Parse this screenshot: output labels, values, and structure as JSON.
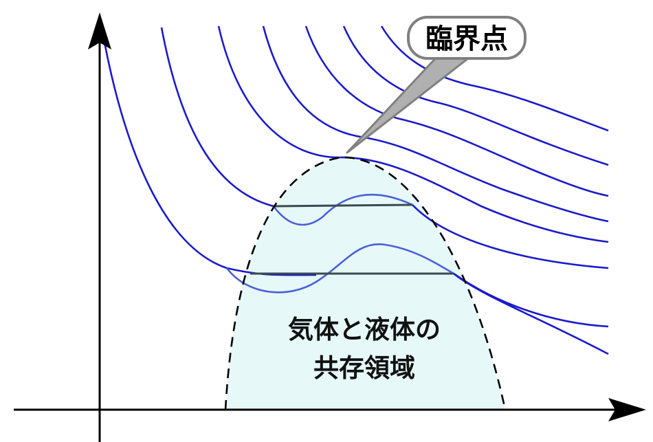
{
  "labels": {
    "critical_point": "臨界点",
    "region_line1": "気体と液体の",
    "region_line2": "共存領域"
  },
  "colors": {
    "isotherm": "#1a1acc",
    "isotherm_dashed_part": "#4a5fd8",
    "tie_line": "#3a4a50",
    "coexistence_fill": "#e6f8f8",
    "boundary": "#000000",
    "callout_border": "#808080",
    "axis": "#000000"
  },
  "axes": {
    "x_axis": "arrow-right",
    "y_axis": "arrow-up"
  }
}
